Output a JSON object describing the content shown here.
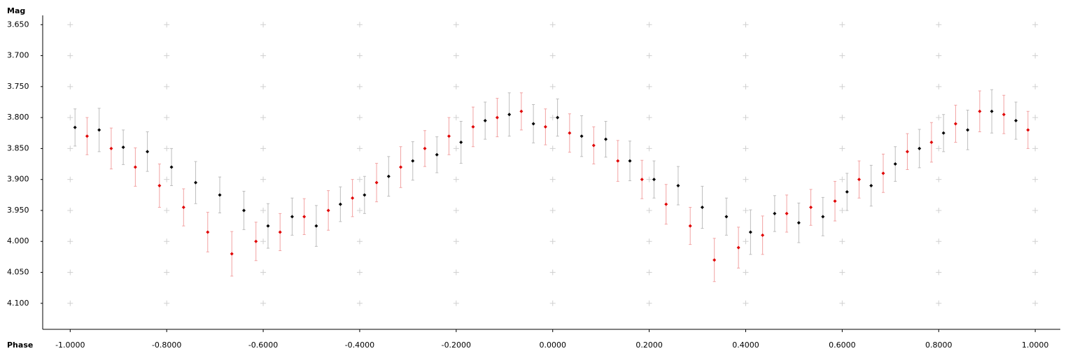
{
  "chart_data": {
    "type": "scatter",
    "x_label": "Phase",
    "y_label": "Mag",
    "xlim": [
      -1.057,
      1.052
    ],
    "ylim": [
      3.635,
      4.142
    ],
    "y_inverted": true,
    "grid": "plus",
    "xticks": [
      {
        "value": -1.0,
        "label": "-1.0000"
      },
      {
        "value": -0.8,
        "label": "-0.8000"
      },
      {
        "value": -0.6,
        "label": "-0.6000"
      },
      {
        "value": -0.4,
        "label": "-0.4000"
      },
      {
        "value": -0.2,
        "label": "-0.2000"
      },
      {
        "value": 0,
        "label": "0.0000"
      },
      {
        "value": 0.2,
        "label": "0.2000"
      },
      {
        "value": 0.4,
        "label": "0.4000"
      },
      {
        "value": 0.6,
        "label": "0.6000"
      },
      {
        "value": 0.8,
        "label": "0.8000"
      },
      {
        "value": 1.0,
        "label": "1.0000"
      }
    ],
    "yticks": [
      {
        "value": 3.65,
        "label": "3.650"
      },
      {
        "value": 3.7,
        "label": "3.700"
      },
      {
        "value": 3.75,
        "label": "3.750"
      },
      {
        "value": 3.8,
        "label": "3.800"
      },
      {
        "value": 3.85,
        "label": "3.850"
      },
      {
        "value": 3.9,
        "label": "3.900"
      },
      {
        "value": 3.95,
        "label": "3.950"
      },
      {
        "value": 4.0,
        "label": "4.000"
      },
      {
        "value": 4.05,
        "label": "4.050"
      },
      {
        "value": 4.1,
        "label": "4.100"
      }
    ],
    "series": [
      {
        "color": "#000000",
        "error_color": "#bdbdbd",
        "x": [
          -0.99,
          -0.94,
          -0.89,
          -0.84,
          -0.79,
          -0.74,
          -0.69,
          -0.64,
          -0.59,
          -0.54,
          -0.49,
          -0.44,
          -0.39,
          -0.34,
          -0.29,
          -0.24,
          -0.19,
          -0.14,
          -0.09,
          -0.04,
          0.01,
          0.06,
          0.11,
          0.16,
          0.21,
          0.26,
          0.31,
          0.36,
          0.41,
          0.46,
          0.51,
          0.56,
          0.61,
          0.66,
          0.71,
          0.76,
          0.81,
          0.86,
          0.91,
          0.96
        ],
        "values": [
          3.816,
          3.82,
          3.848,
          3.855,
          3.88,
          3.905,
          3.925,
          3.95,
          3.975,
          3.96,
          3.975,
          3.94,
          3.925,
          3.895,
          3.87,
          3.86,
          3.84,
          3.805,
          3.795,
          3.81,
          3.8,
          3.83,
          3.835,
          3.87,
          3.9,
          3.91,
          3.945,
          3.96,
          3.985,
          3.955,
          3.97,
          3.96,
          3.92,
          3.91,
          3.875,
          3.85,
          3.825,
          3.82,
          3.79,
          3.805
        ],
        "errors": [
          0.03,
          0.035,
          0.028,
          0.032,
          0.03,
          0.034,
          0.029,
          0.031,
          0.036,
          0.03,
          0.033,
          0.028,
          0.03,
          0.032,
          0.031,
          0.029,
          0.034,
          0.03,
          0.035,
          0.031,
          0.03,
          0.033,
          0.029,
          0.032,
          0.03,
          0.031,
          0.034,
          0.03,
          0.036,
          0.029,
          0.032,
          0.031,
          0.03,
          0.033,
          0.028,
          0.031,
          0.03,
          0.032,
          0.035,
          0.03
        ]
      },
      {
        "color": "#e00000",
        "error_color": "#f2a3a3",
        "x": [
          -0.965,
          -0.915,
          -0.865,
          -0.815,
          -0.765,
          -0.715,
          -0.665,
          -0.615,
          -0.565,
          -0.515,
          -0.465,
          -0.415,
          -0.365,
          -0.315,
          -0.265,
          -0.215,
          -0.165,
          -0.115,
          -0.065,
          -0.015,
          0.035,
          0.085,
          0.135,
          0.185,
          0.235,
          0.285,
          0.335,
          0.385,
          0.435,
          0.485,
          0.535,
          0.585,
          0.635,
          0.685,
          0.735,
          0.785,
          0.835,
          0.885,
          0.935,
          0.985
        ],
        "values": [
          3.83,
          3.85,
          3.88,
          3.91,
          3.945,
          3.985,
          4.02,
          4.0,
          3.985,
          3.96,
          3.95,
          3.93,
          3.905,
          3.88,
          3.85,
          3.83,
          3.815,
          3.8,
          3.79,
          3.815,
          3.825,
          3.845,
          3.87,
          3.9,
          3.94,
          3.975,
          4.03,
          4.01,
          3.99,
          3.955,
          3.945,
          3.935,
          3.9,
          3.89,
          3.855,
          3.84,
          3.81,
          3.79,
          3.795,
          3.82
        ],
        "errors": [
          0.03,
          0.033,
          0.031,
          0.035,
          0.03,
          0.032,
          0.036,
          0.031,
          0.03,
          0.029,
          0.032,
          0.03,
          0.031,
          0.033,
          0.029,
          0.03,
          0.032,
          0.031,
          0.03,
          0.029,
          0.031,
          0.03,
          0.033,
          0.031,
          0.032,
          0.03,
          0.035,
          0.033,
          0.031,
          0.03,
          0.029,
          0.032,
          0.03,
          0.031,
          0.029,
          0.032,
          0.03,
          0.033,
          0.031,
          0.03
        ]
      }
    ]
  }
}
